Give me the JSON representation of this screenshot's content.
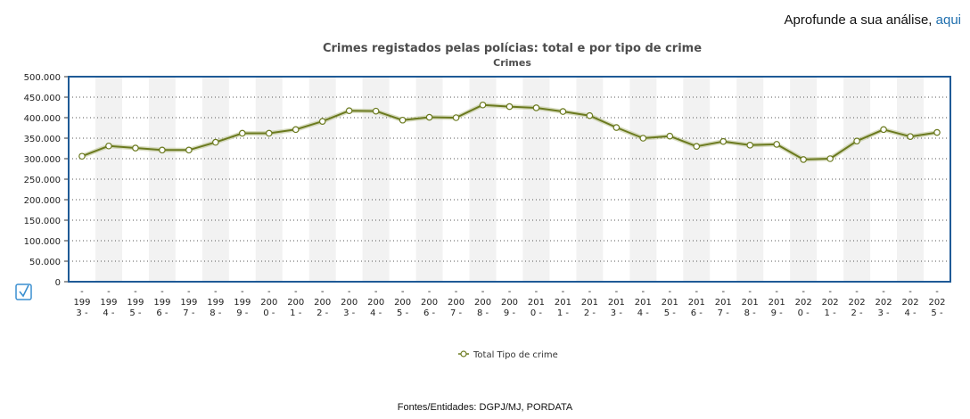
{
  "header": {
    "prefix": "Aprofunde a sua análise,",
    "link": "aqui"
  },
  "chart_data": {
    "type": "line",
    "title": "Crimes registados pelas polícias: total e por tipo de crime",
    "subtitle": "Crimes",
    "xlabel": "",
    "ylabel": "",
    "ylim": [
      0,
      500000
    ],
    "yticks": [
      "0",
      "50.000",
      "100.000",
      "150.000",
      "200.000",
      "250.000",
      "300.000",
      "350.000",
      "400.000",
      "450.000",
      "500.000"
    ],
    "categories": [
      [
        "-",
        "199",
        "3 -"
      ],
      [
        "-",
        "199",
        "4 -"
      ],
      [
        "-",
        "199",
        "5 -"
      ],
      [
        "-",
        "199",
        "6 -"
      ],
      [
        "-",
        "199",
        "7 -"
      ],
      [
        "-",
        "199",
        "8 -"
      ],
      [
        "-",
        "199",
        "9 -"
      ],
      [
        "-",
        "200",
        "0 -"
      ],
      [
        "-",
        "200",
        "1 -"
      ],
      [
        "-",
        "200",
        "2 -"
      ],
      [
        "-",
        "200",
        "3 -"
      ],
      [
        "-",
        "200",
        "4 -"
      ],
      [
        "-",
        "200",
        "5 -"
      ],
      [
        "-",
        "200",
        "6 -"
      ],
      [
        "-",
        "200",
        "7 -"
      ],
      [
        "-",
        "200",
        "8 -"
      ],
      [
        "-",
        "200",
        "9 -"
      ],
      [
        "-",
        "201",
        "0 -"
      ],
      [
        "-",
        "201",
        "1 -"
      ],
      [
        "-",
        "201",
        "2 -"
      ],
      [
        "-",
        "201",
        "3 -"
      ],
      [
        "-",
        "201",
        "4 -"
      ],
      [
        "-",
        "201",
        "5 -"
      ],
      [
        "-",
        "201",
        "6 -"
      ],
      [
        "-",
        "201",
        "7 -"
      ],
      [
        "-",
        "201",
        "8 -"
      ],
      [
        "-",
        "201",
        "9 -"
      ],
      [
        "-",
        "202",
        "0 -"
      ],
      [
        "-",
        "202",
        "1 -"
      ],
      [
        "-",
        "202",
        "2 -"
      ],
      [
        "-",
        "202",
        "3 -"
      ],
      [
        "-",
        "202",
        "4 -"
      ],
      [
        "-",
        "202",
        "5 -"
      ]
    ],
    "series": [
      {
        "name": "Total Tipo de crime",
        "color": "#6b7a1f",
        "values": [
          306000,
          331000,
          326000,
          321000,
          321000,
          340000,
          362000,
          362000,
          371000,
          391000,
          417000,
          416000,
          394000,
          401000,
          400000,
          431000,
          427000,
          424000,
          415000,
          405000,
          376000,
          350000,
          355000,
          330000,
          342000,
          333000,
          335000,
          298000,
          300000,
          343000,
          371000,
          354000,
          364000
        ]
      }
    ],
    "grid": true,
    "legend": "bottom"
  },
  "footer": {
    "source": "Fontes/Entidades: DGPJ/MJ, PORDATA"
  },
  "icons": {
    "checkbox": "checkbox-icon"
  }
}
